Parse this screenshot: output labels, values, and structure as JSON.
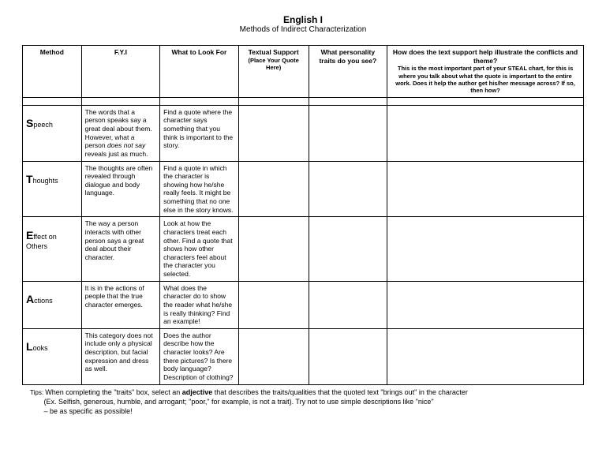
{
  "header": {
    "title": "English I",
    "subtitle": "Methods of Indirect Characterization"
  },
  "columns": {
    "method": "Method",
    "fyi": "F.Y.I",
    "look": "What to Look For",
    "textual": "Textual Support",
    "textual_sub": "(Place Your Quote Here)",
    "traits": "What personality traits do you see?",
    "how": "How does the text support help illustrate the conflicts and theme?",
    "how_sub": "This is the most important part of your STEAL chart, for this is where you talk about what the quote is important to the entire work. Does it help the author get his/her message across? If so, then how?"
  },
  "rows": {
    "speech": {
      "letter": "S",
      "rest": "peech",
      "fyi_a": "The words that a person speaks say a great deal about them. However, what a person ",
      "fyi_italic": "does not say",
      "fyi_b": " reveals just as much.",
      "look": "Find a quote where the character says something that you think is important to the story."
    },
    "thoughts": {
      "letter": "T",
      "rest": "houghts",
      "fyi": "The thoughts are often revealed through dialogue and body language.",
      "look": "Find a quote in which the character is showing how he/she really feels. It might be something that no one else in the story knows."
    },
    "effect": {
      "letter": "E",
      "rest": "ffect on",
      "line2": "Others",
      "fyi": "The way a person interacts with other person says a great deal about their character.",
      "look": "Look at how the characters treat each other. Find a quote that shows how other characters feel about the character you selected."
    },
    "actions": {
      "letter": "A",
      "rest": "ctions",
      "fyi": "It is in the actions of people that the true character emerges.",
      "look": "What does the character do to show the reader what he/she is really thinking? Find an example!"
    },
    "looks": {
      "letter": "L",
      "rest": "ooks",
      "fyi": "This category does not include only a physical description, but facial expression and dress as well.",
      "look": "Does the author describe how the character looks? Are there pictures? Is there body language? Description of clothing?"
    }
  },
  "tips": {
    "lead": "Tips: ",
    "line1a": "When completing the \"traits\" box, select an ",
    "adjective": "adjective",
    "line1b": " that describes the traits/qualities that the quoted text \"brings out\" in the character",
    "line2": "(Ex. Selfish, generous, humble, and arrogant; \"poor,\" for example, is not a trait). Try not to use simple descriptions like \"nice\"",
    "line3": "– be as specific as possible!"
  }
}
